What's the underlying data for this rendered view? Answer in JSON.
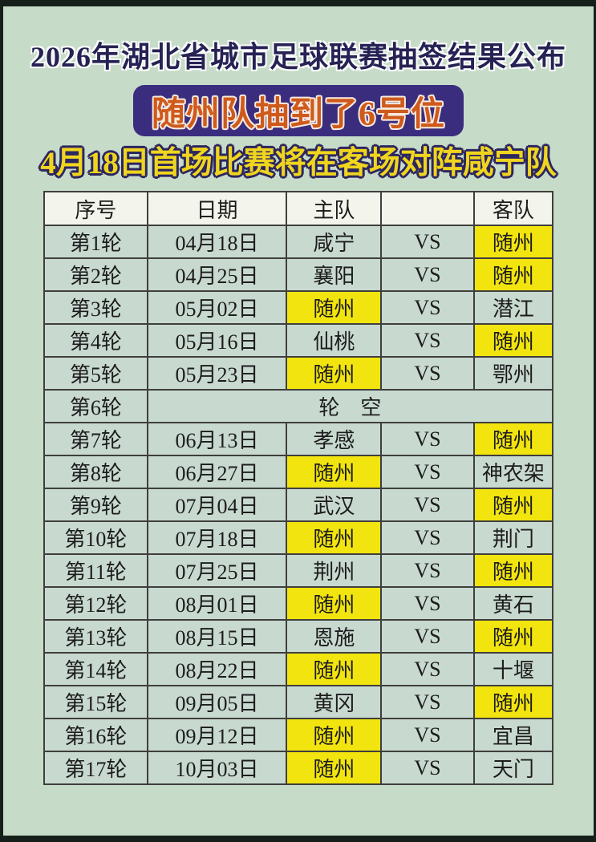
{
  "header": {
    "title": "2026年湖北省城市足球联赛抽签结果公布",
    "banner": "随州队抽到了6号位",
    "subtitle": "4月18日首场比赛将在客场对阵咸宁队"
  },
  "colors": {
    "page_bg": "#c7dbc9",
    "frame": "#16201a",
    "title_text": "#262254",
    "banner_bg": "#3b2d7e",
    "banner_text": "#cf5a1c",
    "subtitle_text": "#f0d51e",
    "subtitle_outline": "#2c2660",
    "cell_bg": "#c8d9d0",
    "header_row_bg": "#f3f5ec",
    "highlight": "#f2e40e",
    "table_border": "#3f3f3d",
    "body_text": "#1c1c1c"
  },
  "table": {
    "columns": [
      "序号",
      "日期",
      "主队",
      "",
      "客队"
    ],
    "vs_label": "VS",
    "bye_text": "轮　空",
    "rows": [
      {
        "round": "第1轮",
        "date": "04月18日",
        "home": "咸宁",
        "away": "随州",
        "highlight": "away",
        "bye": false
      },
      {
        "round": "第2轮",
        "date": "04月25日",
        "home": "襄阳",
        "away": "随州",
        "highlight": "away",
        "bye": false
      },
      {
        "round": "第3轮",
        "date": "05月02日",
        "home": "随州",
        "away": "潜江",
        "highlight": "home",
        "bye": false
      },
      {
        "round": "第4轮",
        "date": "05月16日",
        "home": "仙桃",
        "away": "随州",
        "highlight": "away",
        "bye": false
      },
      {
        "round": "第5轮",
        "date": "05月23日",
        "home": "随州",
        "away": "鄂州",
        "highlight": "home",
        "bye": false
      },
      {
        "round": "第6轮",
        "date": "",
        "home": "",
        "away": "",
        "highlight": "",
        "bye": true
      },
      {
        "round": "第7轮",
        "date": "06月13日",
        "home": "孝感",
        "away": "随州",
        "highlight": "away",
        "bye": false
      },
      {
        "round": "第8轮",
        "date": "06月27日",
        "home": "随州",
        "away": "神农架",
        "highlight": "home",
        "bye": false
      },
      {
        "round": "第9轮",
        "date": "07月04日",
        "home": "武汉",
        "away": "随州",
        "highlight": "away",
        "bye": false
      },
      {
        "round": "第10轮",
        "date": "07月18日",
        "home": "随州",
        "away": "荆门",
        "highlight": "home",
        "bye": false
      },
      {
        "round": "第11轮",
        "date": "07月25日",
        "home": "荆州",
        "away": "随州",
        "highlight": "away",
        "bye": false
      },
      {
        "round": "第12轮",
        "date": "08月01日",
        "home": "随州",
        "away": "黄石",
        "highlight": "home",
        "bye": false
      },
      {
        "round": "第13轮",
        "date": "08月15日",
        "home": "恩施",
        "away": "随州",
        "highlight": "away",
        "bye": false
      },
      {
        "round": "第14轮",
        "date": "08月22日",
        "home": "随州",
        "away": "十堰",
        "highlight": "home",
        "bye": false
      },
      {
        "round": "第15轮",
        "date": "09月05日",
        "home": "黄冈",
        "away": "随州",
        "highlight": "away",
        "bye": false
      },
      {
        "round": "第16轮",
        "date": "09月12日",
        "home": "随州",
        "away": "宜昌",
        "highlight": "home",
        "bye": false
      },
      {
        "round": "第17轮",
        "date": "10月03日",
        "home": "随州",
        "away": "天门",
        "highlight": "home",
        "bye": false
      }
    ]
  }
}
